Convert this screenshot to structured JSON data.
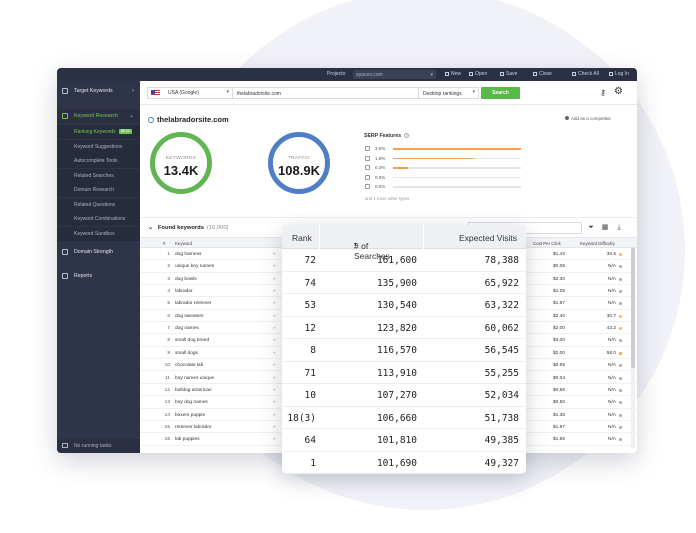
{
  "topbar": {
    "projects_label": "Projects:",
    "project_value": "spaces.com",
    "items": [
      "New",
      "Open",
      "Save",
      "Close",
      "Check All",
      "Log In"
    ]
  },
  "sidebar": {
    "target_keywords": "Target Keywords",
    "keyword_research": "Keyword Research",
    "subitems": [
      {
        "label": "Ranking Keywords",
        "badge": "BETA"
      },
      {
        "label": "Keyword Suggestions"
      },
      {
        "label": "Autocomplete Tools"
      },
      {
        "label": "Related Searches"
      },
      {
        "label": "Domain Research"
      },
      {
        "label": "Related Questions"
      },
      {
        "label": "Keyword Combinations"
      },
      {
        "label": "Keyword Sandbox"
      }
    ],
    "domain_strength": "Domain Strength",
    "reports": "Reports",
    "no_running_tasks": "No running tasks"
  },
  "search": {
    "country": "USA (Google)",
    "domain": "thelabradorsite.com",
    "rank_type": "Desktop rankings",
    "button": "Search"
  },
  "site": {
    "title": "thelabradorsite.com",
    "add_competitor": "Add as a competitor"
  },
  "stats": {
    "keywords_label": "KEYWORDS",
    "keywords_value": "13.4K",
    "traffic_label": "TRAFFIC",
    "traffic_value": "108.9K",
    "keywords_color": "#62b454",
    "traffic_color": "#4f7dc6"
  },
  "serp": {
    "title": "SERP Features",
    "rows": [
      {
        "pct": "3.0%",
        "fill": 1.0
      },
      {
        "pct": "1.9%",
        "fill": 0.63
      },
      {
        "pct": "0.3%",
        "fill": 0.12
      },
      {
        "pct": "0.0%",
        "fill": 0
      },
      {
        "pct": "0.0%",
        "fill": 0
      }
    ],
    "more": "and 1 more other types"
  },
  "found": {
    "title": "Found keywords",
    "count": "(10,000)"
  },
  "table": {
    "headers": {
      "num": "#",
      "keyword": "Keyword",
      "cpc": "Cost Per Click",
      "kd": "Keyword Difficulty"
    },
    "rows": [
      {
        "n": "1",
        "kw": "dog harness",
        "cpc": "$1.42",
        "kd": "36.6",
        "dot": "#e8c34a"
      },
      {
        "n": "2",
        "kw": "unique boy names",
        "cpc": "$0.06",
        "kd": "N/A",
        "dot": "#aaaaaa"
      },
      {
        "n": "3",
        "kw": "dog bowls",
        "cpc": "$2.30",
        "kd": "N/A",
        "dot": "#aaaaaa"
      },
      {
        "n": "4",
        "kw": "labrador",
        "cpc": "$1.05",
        "kd": "N/A",
        "dot": "#aaaaaa"
      },
      {
        "n": "5",
        "kw": "labrador retriever",
        "cpc": "$1.87",
        "kd": "N/A",
        "dot": "#aaaaaa"
      },
      {
        "n": "6",
        "kw": "dog sweaters",
        "cpc": "$2.40",
        "kd": "30.7",
        "dot": "#e8c34a"
      },
      {
        "n": "7",
        "kw": "dog names",
        "cpc": "$2.00",
        "kd": "43.2",
        "dot": "#e8c34a"
      },
      {
        "n": "8",
        "kw": "small dog breed",
        "cpc": "$3.00",
        "kd": "N/A",
        "dot": "#aaaaaa"
      },
      {
        "n": "9",
        "kw": "small dogs",
        "cpc": "$2.00",
        "kd": "58.0",
        "dot": "#f0a030"
      },
      {
        "n": "10",
        "kw": "chocolate lab",
        "cpc": "$0.69",
        "kd": "N/A",
        "dot": "#aaaaaa"
      },
      {
        "n": "11",
        "kw": "boy names unique",
        "cpc": "$0.04",
        "kd": "N/A",
        "dot": "#aaaaaa"
      },
      {
        "n": "12",
        "kw": "bulldog american",
        "cpc": "$0.66",
        "kd": "N/A",
        "dot": "#aaaaaa"
      },
      {
        "n": "13",
        "kw": "boy dog names",
        "cpc": "$0.50",
        "kd": "N/A",
        "dot": "#aaaaaa"
      },
      {
        "n": "14",
        "kw": "boxers puppie",
        "cpc": "$1.35",
        "kd": "N/A",
        "dot": "#aaaaaa"
      },
      {
        "n": "15",
        "kw": "retriever labrador",
        "cpc": "$1.87",
        "kd": "N/A",
        "dot": "#aaaaaa"
      },
      {
        "n": "16",
        "kw": "lab puppies",
        "cpc": "$1.66",
        "kd": "N/A",
        "dot": "#aaaaaa"
      }
    ]
  },
  "overlay": {
    "headers": {
      "rank": "Rank",
      "searches": "# of Searches",
      "visits": "Expected Visits"
    },
    "rows": [
      {
        "rank": "72",
        "searches": "161,600",
        "visits": "78,388"
      },
      {
        "rank": "74",
        "searches": "135,900",
        "visits": "65,922"
      },
      {
        "rank": "53",
        "searches": "130,540",
        "visits": "63,322"
      },
      {
        "rank": "12",
        "searches": "123,820",
        "visits": "60,062"
      },
      {
        "rank": "8",
        "searches": "116,570",
        "visits": "56,545"
      },
      {
        "rank": "71",
        "searches": "113,910",
        "visits": "55,255"
      },
      {
        "rank": "10",
        "searches": "107,270",
        "visits": "52,034"
      },
      {
        "rank": "18(3)",
        "searches": "106,660",
        "visits": "51,738"
      },
      {
        "rank": "64",
        "searches": "101,810",
        "visits": "49,385"
      },
      {
        "rank": "1",
        "searches": "101,690",
        "visits": "49,327"
      }
    ]
  }
}
